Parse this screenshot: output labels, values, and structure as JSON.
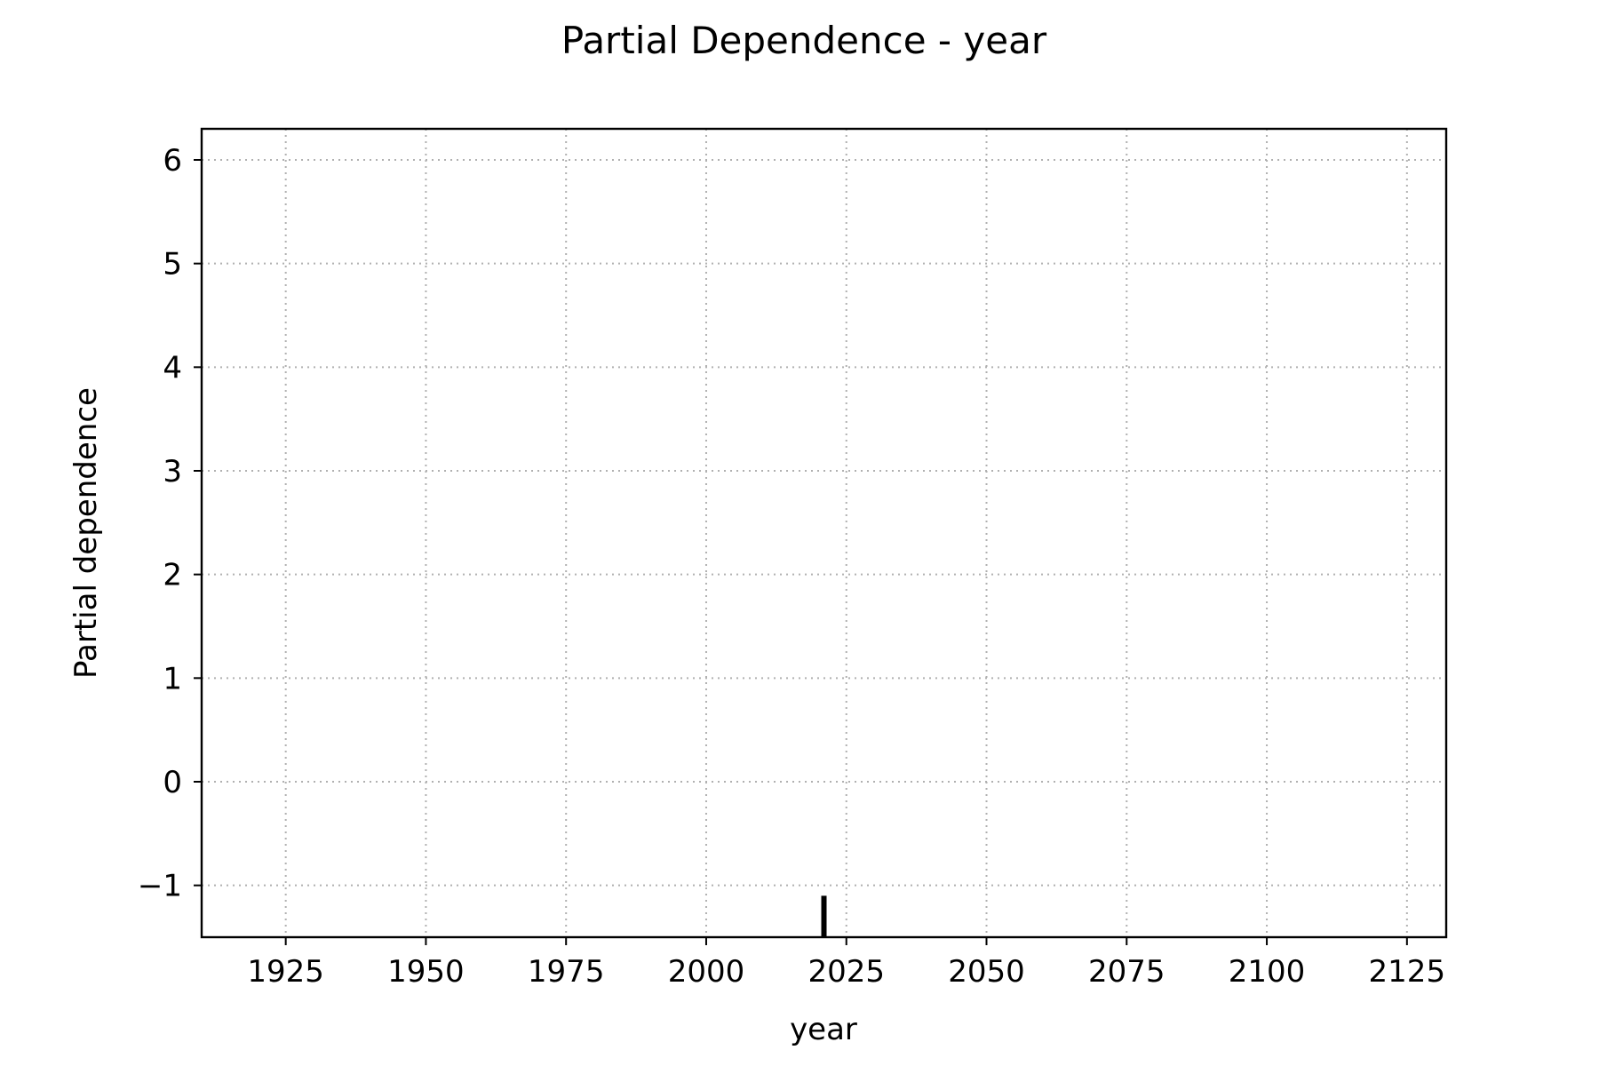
{
  "chart_data": {
    "type": "line",
    "title": "Partial Dependence - year",
    "xlabel": "year",
    "ylabel": "Partial dependence",
    "xlim": [
      1910,
      2132
    ],
    "ylim": [
      -1.5,
      6.3
    ],
    "x_ticks": [
      1925,
      1950,
      1975,
      2000,
      2025,
      2050,
      2075,
      2100,
      2125
    ],
    "x_tick_labels": [
      "1925",
      "1950",
      "1975",
      "2000",
      "2025",
      "2050",
      "2075",
      "2100",
      "2125"
    ],
    "y_ticks": [
      -1,
      0,
      1,
      2,
      3,
      4,
      5,
      6
    ],
    "y_tick_labels": [
      "−1",
      "0",
      "1",
      "2",
      "3",
      "4",
      "5",
      "6"
    ],
    "grid": true,
    "series": [
      {
        "x": [],
        "y": []
      }
    ],
    "rug": {
      "x": [
        2021
      ],
      "y_range": [
        -1.5,
        -1.1
      ],
      "color": "#000000"
    },
    "colors": {
      "grid": "#b0b0b0",
      "axes": "#000000",
      "text": "#000000",
      "background": "#ffffff"
    }
  }
}
